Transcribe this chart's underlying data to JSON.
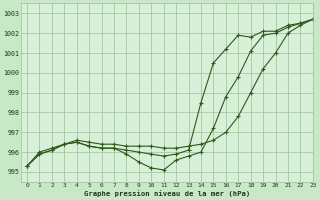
{
  "title": "Graphe pression niveau de la mer (hPa)",
  "background_color": "#c8e8c8",
  "plot_bg_color": "#d8efd8",
  "grid_color": "#9dbf9d",
  "line_color": "#2d5a1b",
  "xlim": [
    -0.5,
    23
  ],
  "ylim": [
    994.5,
    1003.5
  ],
  "yticks": [
    995,
    996,
    997,
    998,
    999,
    1000,
    1001,
    1002,
    1003
  ],
  "xticks": [
    0,
    1,
    2,
    3,
    4,
    5,
    6,
    7,
    8,
    9,
    10,
    11,
    12,
    13,
    14,
    15,
    16,
    17,
    18,
    19,
    20,
    21,
    22,
    23
  ],
  "series1": [
    995.3,
    995.9,
    996.1,
    996.4,
    996.5,
    996.3,
    996.2,
    996.2,
    995.9,
    995.5,
    995.2,
    995.1,
    995.6,
    995.8,
    996.0,
    997.2,
    998.8,
    999.8,
    1001.1,
    1001.9,
    1002.0,
    1002.3,
    1002.5,
    1002.7
  ],
  "series2": [
    995.3,
    995.9,
    996.1,
    996.4,
    996.5,
    996.3,
    996.2,
    996.2,
    996.1,
    996.0,
    995.9,
    995.8,
    995.9,
    996.1,
    998.5,
    1000.5,
    1001.2,
    1001.9,
    1001.8,
    1002.1,
    1002.1,
    1002.4,
    1002.5,
    1002.7
  ],
  "series3": [
    995.3,
    996.0,
    996.2,
    996.4,
    996.6,
    996.5,
    996.4,
    996.4,
    996.3,
    996.3,
    996.3,
    996.2,
    996.2,
    996.3,
    996.4,
    996.6,
    997.0,
    997.8,
    999.0,
    1000.2,
    1001.0,
    1002.0,
    1002.4,
    1002.7
  ]
}
